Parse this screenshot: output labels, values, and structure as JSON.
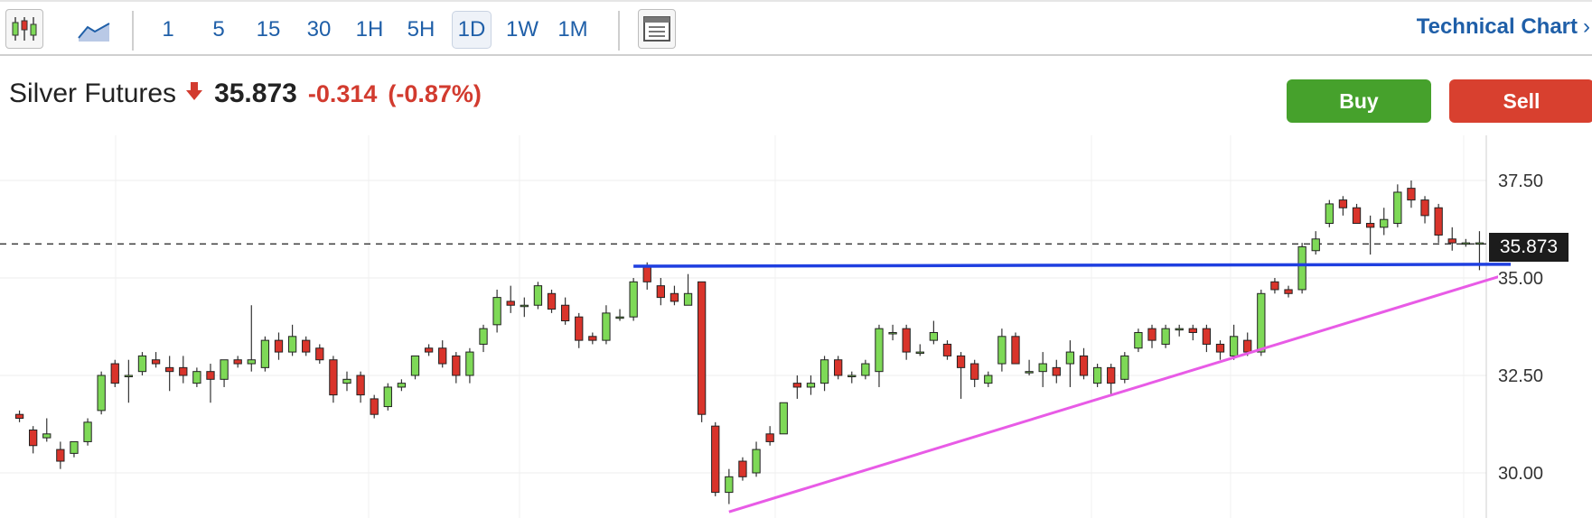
{
  "toolbar": {
    "chart_type_icons": [
      "candlestick-chart-icon",
      "area-chart-icon"
    ],
    "intervals": [
      "1",
      "5",
      "15",
      "30",
      "1H",
      "5H",
      "1D",
      "1W",
      "1M"
    ],
    "active_interval": "1D",
    "layout_icon": "layout-panel-icon",
    "technical_chart_label": "Technical Chart",
    "technical_chart_chevron": "›"
  },
  "quote": {
    "name": "Silver Futures",
    "direction_icon": "down-arrow-icon",
    "price": "35.873",
    "change": "-0.314",
    "change_pct": "(-0.87%)"
  },
  "actions": {
    "buy_label": "Buy",
    "sell_label": "Sell"
  },
  "colors": {
    "up": "#7ed957",
    "down": "#d9342b",
    "accent": "#1f5fa8",
    "support_line": "#1f3fe0",
    "trend_line": "#e85be6"
  },
  "chart_data": {
    "type": "candlestick",
    "y_ticks": [
      "37.50",
      "35.00",
      "32.50",
      "30.00"
    ],
    "last_price_label": "35.873",
    "last_price": 35.873,
    "ylim": [
      29.2,
      38.2
    ],
    "grid": true,
    "candles": [
      {
        "o": 31.5,
        "h": 31.6,
        "l": 31.3,
        "c": 31.4
      },
      {
        "o": 31.1,
        "h": 31.2,
        "l": 30.5,
        "c": 30.7
      },
      {
        "o": 30.9,
        "h": 31.4,
        "l": 30.8,
        "c": 31.0
      },
      {
        "o": 30.6,
        "h": 30.8,
        "l": 30.1,
        "c": 30.3
      },
      {
        "o": 30.5,
        "h": 30.8,
        "l": 30.4,
        "c": 30.8
      },
      {
        "o": 30.8,
        "h": 31.4,
        "l": 30.7,
        "c": 31.3
      },
      {
        "o": 31.6,
        "h": 32.6,
        "l": 31.5,
        "c": 32.5
      },
      {
        "o": 32.8,
        "h": 32.9,
        "l": 32.2,
        "c": 32.3
      },
      {
        "o": 32.5,
        "h": 32.9,
        "l": 31.8,
        "c": 32.5
      },
      {
        "o": 32.6,
        "h": 33.1,
        "l": 32.5,
        "c": 33.0
      },
      {
        "o": 32.9,
        "h": 33.1,
        "l": 32.7,
        "c": 32.8
      },
      {
        "o": 32.7,
        "h": 33.0,
        "l": 32.1,
        "c": 32.6
      },
      {
        "o": 32.7,
        "h": 33.0,
        "l": 32.3,
        "c": 32.5
      },
      {
        "o": 32.3,
        "h": 32.7,
        "l": 32.2,
        "c": 32.6
      },
      {
        "o": 32.6,
        "h": 32.8,
        "l": 31.8,
        "c": 32.4
      },
      {
        "o": 32.4,
        "h": 32.9,
        "l": 32.2,
        "c": 32.9
      },
      {
        "o": 32.9,
        "h": 33.0,
        "l": 32.7,
        "c": 32.8
      },
      {
        "o": 32.8,
        "h": 34.3,
        "l": 32.6,
        "c": 32.9
      },
      {
        "o": 32.7,
        "h": 33.5,
        "l": 32.6,
        "c": 33.4
      },
      {
        "o": 33.4,
        "h": 33.6,
        "l": 32.9,
        "c": 33.1
      },
      {
        "o": 33.1,
        "h": 33.8,
        "l": 33.0,
        "c": 33.5
      },
      {
        "o": 33.4,
        "h": 33.5,
        "l": 33.0,
        "c": 33.1
      },
      {
        "o": 33.2,
        "h": 33.3,
        "l": 32.8,
        "c": 32.9
      },
      {
        "o": 32.9,
        "h": 33.0,
        "l": 31.8,
        "c": 32.0
      },
      {
        "o": 32.3,
        "h": 32.6,
        "l": 32.1,
        "c": 32.4
      },
      {
        "o": 32.5,
        "h": 32.6,
        "l": 31.8,
        "c": 32.0
      },
      {
        "o": 31.9,
        "h": 32.0,
        "l": 31.4,
        "c": 31.5
      },
      {
        "o": 31.7,
        "h": 32.3,
        "l": 31.6,
        "c": 32.2
      },
      {
        "o": 32.2,
        "h": 32.4,
        "l": 32.1,
        "c": 32.3
      },
      {
        "o": 32.5,
        "h": 33.0,
        "l": 32.4,
        "c": 33.0
      },
      {
        "o": 33.2,
        "h": 33.3,
        "l": 33.0,
        "c": 33.1
      },
      {
        "o": 33.2,
        "h": 33.4,
        "l": 32.7,
        "c": 32.8
      },
      {
        "o": 33.0,
        "h": 33.1,
        "l": 32.3,
        "c": 32.5
      },
      {
        "o": 32.5,
        "h": 33.2,
        "l": 32.3,
        "c": 33.1
      },
      {
        "o": 33.3,
        "h": 33.8,
        "l": 33.1,
        "c": 33.7
      },
      {
        "o": 33.8,
        "h": 34.7,
        "l": 33.6,
        "c": 34.5
      },
      {
        "o": 34.4,
        "h": 34.8,
        "l": 34.1,
        "c": 34.3
      },
      {
        "o": 34.3,
        "h": 34.5,
        "l": 34.0,
        "c": 34.3
      },
      {
        "o": 34.3,
        "h": 34.9,
        "l": 34.2,
        "c": 34.8
      },
      {
        "o": 34.6,
        "h": 34.7,
        "l": 34.1,
        "c": 34.2
      },
      {
        "o": 34.3,
        "h": 34.5,
        "l": 33.8,
        "c": 33.9
      },
      {
        "o": 34.0,
        "h": 34.1,
        "l": 33.2,
        "c": 33.4
      },
      {
        "o": 33.5,
        "h": 33.6,
        "l": 33.3,
        "c": 33.4
      },
      {
        "o": 33.4,
        "h": 34.3,
        "l": 33.3,
        "c": 34.1
      },
      {
        "o": 34.0,
        "h": 34.2,
        "l": 33.9,
        "c": 34.0
      },
      {
        "o": 34.0,
        "h": 35.0,
        "l": 33.9,
        "c": 34.9
      },
      {
        "o": 35.3,
        "h": 35.4,
        "l": 34.7,
        "c": 34.9
      },
      {
        "o": 34.8,
        "h": 35.0,
        "l": 34.3,
        "c": 34.5
      },
      {
        "o": 34.6,
        "h": 34.8,
        "l": 34.3,
        "c": 34.4
      },
      {
        "o": 34.3,
        "h": 35.1,
        "l": 34.3,
        "c": 34.6
      },
      {
        "o": 34.9,
        "h": 34.9,
        "l": 31.3,
        "c": 31.5
      },
      {
        "o": 31.2,
        "h": 31.3,
        "l": 29.4,
        "c": 29.5
      },
      {
        "o": 29.5,
        "h": 30.1,
        "l": 29.2,
        "c": 29.9
      },
      {
        "o": 30.3,
        "h": 30.4,
        "l": 29.8,
        "c": 29.9
      },
      {
        "o": 30.0,
        "h": 30.8,
        "l": 29.9,
        "c": 30.6
      },
      {
        "o": 31.0,
        "h": 31.2,
        "l": 30.7,
        "c": 30.8
      },
      {
        "o": 31.0,
        "h": 31.8,
        "l": 31.0,
        "c": 31.8
      },
      {
        "o": 32.3,
        "h": 32.5,
        "l": 31.9,
        "c": 32.2
      },
      {
        "o": 32.2,
        "h": 32.5,
        "l": 32.0,
        "c": 32.3
      },
      {
        "o": 32.3,
        "h": 33.0,
        "l": 32.1,
        "c": 32.9
      },
      {
        "o": 32.9,
        "h": 33.0,
        "l": 32.4,
        "c": 32.5
      },
      {
        "o": 32.5,
        "h": 32.6,
        "l": 32.3,
        "c": 32.5
      },
      {
        "o": 32.5,
        "h": 32.9,
        "l": 32.4,
        "c": 32.8
      },
      {
        "o": 32.6,
        "h": 33.8,
        "l": 32.2,
        "c": 33.7
      },
      {
        "o": 33.6,
        "h": 33.8,
        "l": 33.4,
        "c": 33.6
      },
      {
        "o": 33.7,
        "h": 33.8,
        "l": 32.9,
        "c": 33.1
      },
      {
        "o": 33.1,
        "h": 33.3,
        "l": 33.0,
        "c": 33.1
      },
      {
        "o": 33.4,
        "h": 33.9,
        "l": 33.3,
        "c": 33.6
      },
      {
        "o": 33.3,
        "h": 33.4,
        "l": 32.9,
        "c": 33.0
      },
      {
        "o": 33.0,
        "h": 33.1,
        "l": 31.9,
        "c": 32.7
      },
      {
        "o": 32.8,
        "h": 32.9,
        "l": 32.2,
        "c": 32.4
      },
      {
        "o": 32.3,
        "h": 32.6,
        "l": 32.2,
        "c": 32.5
      },
      {
        "o": 32.8,
        "h": 33.7,
        "l": 32.6,
        "c": 33.5
      },
      {
        "o": 33.5,
        "h": 33.6,
        "l": 32.8,
        "c": 32.8
      },
      {
        "o": 32.6,
        "h": 32.9,
        "l": 32.5,
        "c": 32.6
      },
      {
        "o": 32.6,
        "h": 33.1,
        "l": 32.2,
        "c": 32.8
      },
      {
        "o": 32.7,
        "h": 32.9,
        "l": 32.3,
        "c": 32.5
      },
      {
        "o": 32.8,
        "h": 33.4,
        "l": 32.2,
        "c": 33.1
      },
      {
        "o": 33.0,
        "h": 33.2,
        "l": 32.4,
        "c": 32.5
      },
      {
        "o": 32.3,
        "h": 32.8,
        "l": 32.2,
        "c": 32.7
      },
      {
        "o": 32.7,
        "h": 32.8,
        "l": 32.0,
        "c": 32.3
      },
      {
        "o": 32.4,
        "h": 33.1,
        "l": 32.3,
        "c": 33.0
      },
      {
        "o": 33.2,
        "h": 33.7,
        "l": 33.1,
        "c": 33.6
      },
      {
        "o": 33.7,
        "h": 33.8,
        "l": 33.2,
        "c": 33.4
      },
      {
        "o": 33.3,
        "h": 33.8,
        "l": 33.2,
        "c": 33.7
      },
      {
        "o": 33.7,
        "h": 33.8,
        "l": 33.5,
        "c": 33.7
      },
      {
        "o": 33.7,
        "h": 33.8,
        "l": 33.4,
        "c": 33.6
      },
      {
        "o": 33.7,
        "h": 33.8,
        "l": 33.1,
        "c": 33.3
      },
      {
        "o": 33.3,
        "h": 33.4,
        "l": 32.9,
        "c": 33.1
      },
      {
        "o": 33.0,
        "h": 33.8,
        "l": 32.9,
        "c": 33.5
      },
      {
        "o": 33.4,
        "h": 33.6,
        "l": 33.0,
        "c": 33.1
      },
      {
        "o": 33.1,
        "h": 34.7,
        "l": 33.0,
        "c": 34.6
      },
      {
        "o": 34.9,
        "h": 35.0,
        "l": 34.6,
        "c": 34.7
      },
      {
        "o": 34.7,
        "h": 34.8,
        "l": 34.5,
        "c": 34.6
      },
      {
        "o": 34.7,
        "h": 35.9,
        "l": 34.6,
        "c": 35.8
      },
      {
        "o": 35.7,
        "h": 36.2,
        "l": 35.6,
        "c": 36.0
      },
      {
        "o": 36.4,
        "h": 37.0,
        "l": 36.3,
        "c": 36.9
      },
      {
        "o": 37.0,
        "h": 37.1,
        "l": 36.6,
        "c": 36.8
      },
      {
        "o": 36.8,
        "h": 36.9,
        "l": 36.4,
        "c": 36.4
      },
      {
        "o": 36.4,
        "h": 36.6,
        "l": 35.6,
        "c": 36.3
      },
      {
        "o": 36.3,
        "h": 36.8,
        "l": 36.1,
        "c": 36.5
      },
      {
        "o": 36.4,
        "h": 37.4,
        "l": 36.3,
        "c": 37.2
      },
      {
        "o": 37.3,
        "h": 37.5,
        "l": 36.8,
        "c": 37.0
      },
      {
        "o": 37.0,
        "h": 37.1,
        "l": 36.4,
        "c": 36.6
      },
      {
        "o": 36.8,
        "h": 36.9,
        "l": 35.9,
        "c": 36.1
      },
      {
        "o": 36.0,
        "h": 36.3,
        "l": 35.7,
        "c": 35.9
      },
      {
        "o": 35.9,
        "h": 36.0,
        "l": 35.8,
        "c": 35.9
      },
      {
        "o": 35.9,
        "h": 36.2,
        "l": 35.2,
        "c": 35.9
      }
    ],
    "support_line": {
      "from_index": 47,
      "to_index": 119,
      "value_start": 35.3,
      "value_end": 35.35
    },
    "trend_line": {
      "from_index": 52,
      "value_start": 29.0,
      "to_index": 119,
      "value_end": 35.1
    }
  }
}
